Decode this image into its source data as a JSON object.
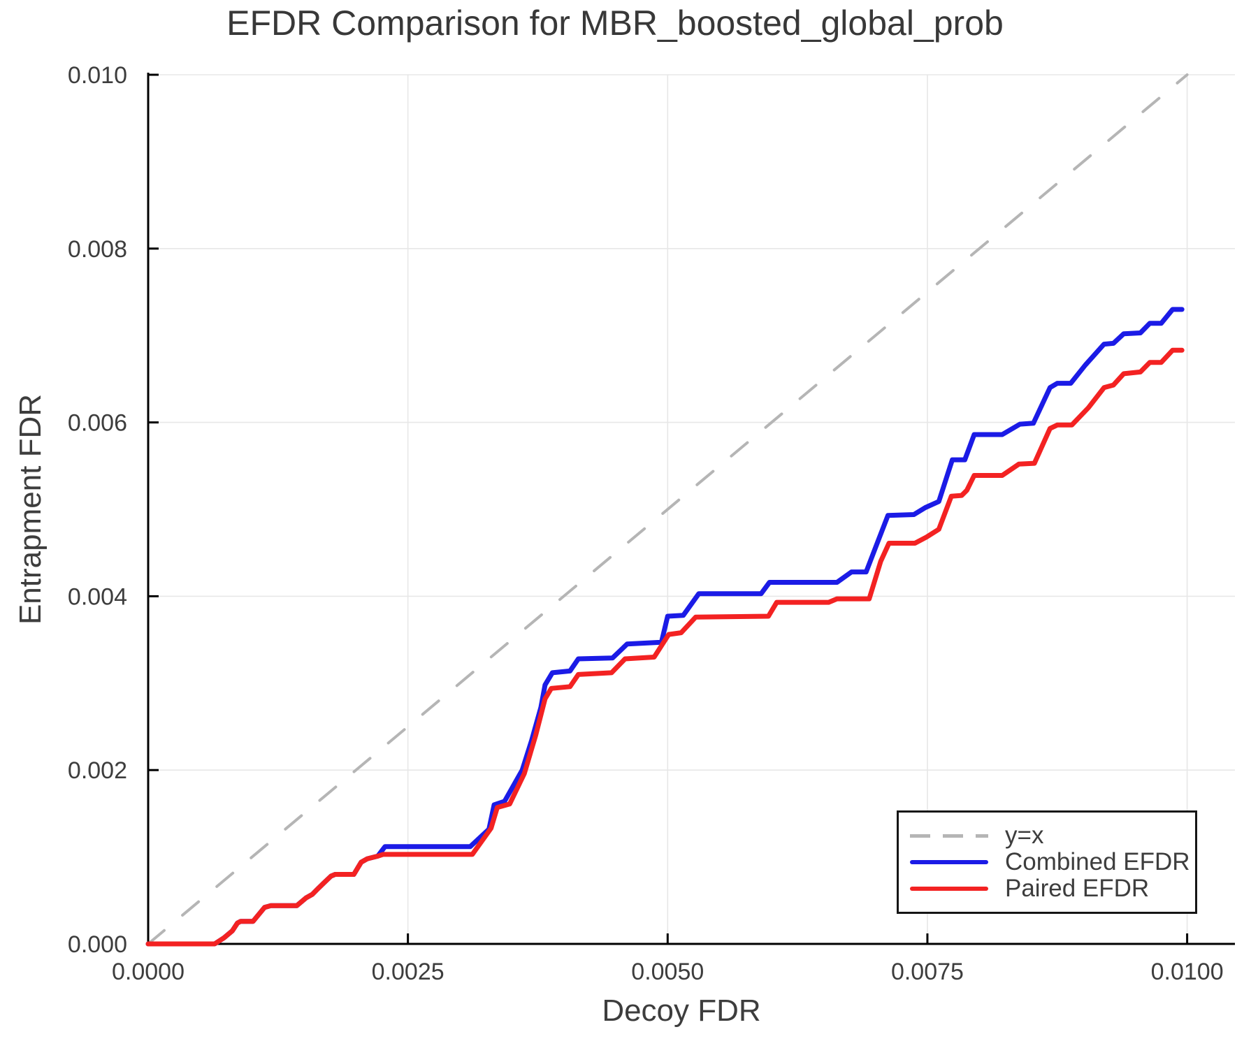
{
  "title": "EFDR Comparison for MBR_boosted_global_prob",
  "axes": {
    "x_label": "Decoy FDR",
    "y_label": "Entrapment FDR",
    "x_ticks": [
      {
        "value": 0.0,
        "label": "0.0000"
      },
      {
        "value": 0.0025,
        "label": "0.0025"
      },
      {
        "value": 0.005,
        "label": "0.0050"
      },
      {
        "value": 0.0075,
        "label": "0.0075"
      },
      {
        "value": 0.01,
        "label": "0.0100"
      }
    ],
    "y_ticks": [
      {
        "value": 0.0,
        "label": "0.000"
      },
      {
        "value": 0.002,
        "label": "0.002"
      },
      {
        "value": 0.004,
        "label": "0.004"
      },
      {
        "value": 0.006,
        "label": "0.006"
      },
      {
        "value": 0.008,
        "label": "0.008"
      },
      {
        "value": 0.01,
        "label": "0.010"
      }
    ]
  },
  "colors": {
    "combined": "#1b1be6",
    "paired": "#f32222",
    "identity": "#b5b5b5",
    "gridline": "#e7e7e7",
    "spine": "#000000",
    "text": "#3d3d3d"
  },
  "chart_data": {
    "type": "line",
    "title": "EFDR Comparison for MBR_boosted_global_prob",
    "xlabel": "Decoy FDR",
    "ylabel": "Entrapment FDR",
    "xlim": [
      0.0,
      0.01046
    ],
    "ylim": [
      0.0,
      0.01
    ],
    "grid": true,
    "legend_position": "bottom-right",
    "series": [
      {
        "name": "y=x",
        "style": "dashed",
        "color": "#b5b5b5",
        "points": [
          [
            0.0,
            0.0
          ],
          [
            0.01,
            0.01
          ]
        ]
      },
      {
        "name": "Combined EFDR",
        "style": "solid",
        "color": "#1b1be6",
        "points": [
          [
            0.0,
            0.0
          ],
          [
            0.00064,
            0.0
          ],
          [
            0.00073,
            7e-05
          ],
          [
            0.00081,
            0.00015
          ],
          [
            0.00086,
            0.00024
          ],
          [
            0.00089,
            0.00026
          ],
          [
            0.00101,
            0.00026
          ],
          [
            0.00112,
            0.00042
          ],
          [
            0.00118,
            0.00044
          ],
          [
            0.00143,
            0.00044
          ],
          [
            0.00152,
            0.00053
          ],
          [
            0.00158,
            0.00057
          ],
          [
            0.00163,
            0.00063
          ],
          [
            0.00169,
            0.0007
          ],
          [
            0.00176,
            0.00078
          ],
          [
            0.0018,
            0.0008
          ],
          [
            0.00198,
            0.0008
          ],
          [
            0.00205,
            0.00094
          ],
          [
            0.00211,
            0.00098
          ],
          [
            0.00221,
            0.00101
          ],
          [
            0.00228,
            0.00112
          ],
          [
            0.0031,
            0.00112
          ],
          [
            0.00328,
            0.00132
          ],
          [
            0.00333,
            0.0016
          ],
          [
            0.00343,
            0.00164
          ],
          [
            0.0036,
            0.002
          ],
          [
            0.00369,
            0.00234
          ],
          [
            0.00378,
            0.00272
          ],
          [
            0.00382,
            0.00298
          ],
          [
            0.00389,
            0.00312
          ],
          [
            0.00406,
            0.00314
          ],
          [
            0.00414,
            0.00328
          ],
          [
            0.00447,
            0.00329
          ],
          [
            0.00461,
            0.00345
          ],
          [
            0.00494,
            0.00347
          ],
          [
            0.005,
            0.00377
          ],
          [
            0.00515,
            0.00378
          ],
          [
            0.0053,
            0.00403
          ],
          [
            0.0059,
            0.00403
          ],
          [
            0.00598,
            0.00416
          ],
          [
            0.00663,
            0.00416
          ],
          [
            0.00677,
            0.00428
          ],
          [
            0.00691,
            0.00428
          ],
          [
            0.00702,
            0.00462
          ],
          [
            0.00712,
            0.00493
          ],
          [
            0.00737,
            0.00494
          ],
          [
            0.00748,
            0.00502
          ],
          [
            0.00761,
            0.00509
          ],
          [
            0.00774,
            0.00557
          ],
          [
            0.00786,
            0.00557
          ],
          [
            0.00795,
            0.00586
          ],
          [
            0.00822,
            0.00586
          ],
          [
            0.00839,
            0.00598
          ],
          [
            0.00852,
            0.00599
          ],
          [
            0.00868,
            0.0064
          ],
          [
            0.00875,
            0.00645
          ],
          [
            0.00888,
            0.00645
          ],
          [
            0.00902,
            0.00666
          ],
          [
            0.0092,
            0.0069
          ],
          [
            0.00929,
            0.00691
          ],
          [
            0.00939,
            0.00702
          ],
          [
            0.00955,
            0.00703
          ],
          [
            0.00964,
            0.00714
          ],
          [
            0.00975,
            0.00714
          ],
          [
            0.00986,
            0.0073
          ],
          [
            0.00995,
            0.0073
          ]
        ]
      },
      {
        "name": "Paired EFDR",
        "style": "solid",
        "color": "#f32222",
        "points": [
          [
            0.0,
            0.0
          ],
          [
            0.00064,
            0.0
          ],
          [
            0.00073,
            7e-05
          ],
          [
            0.00081,
            0.00015
          ],
          [
            0.00086,
            0.00024
          ],
          [
            0.00089,
            0.00026
          ],
          [
            0.00101,
            0.00026
          ],
          [
            0.00112,
            0.00042
          ],
          [
            0.00118,
            0.00044
          ],
          [
            0.00143,
            0.00044
          ],
          [
            0.00152,
            0.00053
          ],
          [
            0.00158,
            0.00057
          ],
          [
            0.00163,
            0.00063
          ],
          [
            0.00169,
            0.0007
          ],
          [
            0.00176,
            0.00078
          ],
          [
            0.0018,
            0.0008
          ],
          [
            0.00198,
            0.0008
          ],
          [
            0.00205,
            0.00094
          ],
          [
            0.00211,
            0.00098
          ],
          [
            0.00221,
            0.00101
          ],
          [
            0.00226,
            0.00103
          ],
          [
            0.00312,
            0.00103
          ],
          [
            0.0033,
            0.00133
          ],
          [
            0.00336,
            0.00157
          ],
          [
            0.00348,
            0.00161
          ],
          [
            0.00362,
            0.00196
          ],
          [
            0.00373,
            0.0024
          ],
          [
            0.00382,
            0.00282
          ],
          [
            0.00388,
            0.00294
          ],
          [
            0.00406,
            0.00296
          ],
          [
            0.00414,
            0.0031
          ],
          [
            0.00446,
            0.00312
          ],
          [
            0.00459,
            0.00328
          ],
          [
            0.00487,
            0.0033
          ],
          [
            0.00501,
            0.00356
          ],
          [
            0.00513,
            0.00358
          ],
          [
            0.00527,
            0.00376
          ],
          [
            0.00597,
            0.00377
          ],
          [
            0.00605,
            0.00393
          ],
          [
            0.00655,
            0.00393
          ],
          [
            0.00663,
            0.00397
          ],
          [
            0.00694,
            0.00397
          ],
          [
            0.00705,
            0.0044
          ],
          [
            0.00713,
            0.00461
          ],
          [
            0.00738,
            0.00461
          ],
          [
            0.00749,
            0.00468
          ],
          [
            0.00761,
            0.00477
          ],
          [
            0.00773,
            0.00515
          ],
          [
            0.00783,
            0.00516
          ],
          [
            0.00788,
            0.00522
          ],
          [
            0.00795,
            0.00539
          ],
          [
            0.00822,
            0.00539
          ],
          [
            0.00838,
            0.00552
          ],
          [
            0.00853,
            0.00553
          ],
          [
            0.00868,
            0.00593
          ],
          [
            0.00875,
            0.00597
          ],
          [
            0.00889,
            0.00597
          ],
          [
            0.00905,
            0.00617
          ],
          [
            0.0092,
            0.0064
          ],
          [
            0.00929,
            0.00643
          ],
          [
            0.00939,
            0.00656
          ],
          [
            0.00955,
            0.00658
          ],
          [
            0.00964,
            0.00669
          ],
          [
            0.00975,
            0.00669
          ],
          [
            0.00986,
            0.00683
          ],
          [
            0.00995,
            0.00683
          ]
        ]
      }
    ]
  },
  "legend": {
    "items": [
      {
        "label": "y=x",
        "style": "dashed",
        "color": "#b5b5b5"
      },
      {
        "label": "Combined EFDR",
        "style": "solid",
        "color": "#1b1be6"
      },
      {
        "label": "Paired EFDR",
        "style": "solid",
        "color": "#f32222"
      }
    ]
  }
}
